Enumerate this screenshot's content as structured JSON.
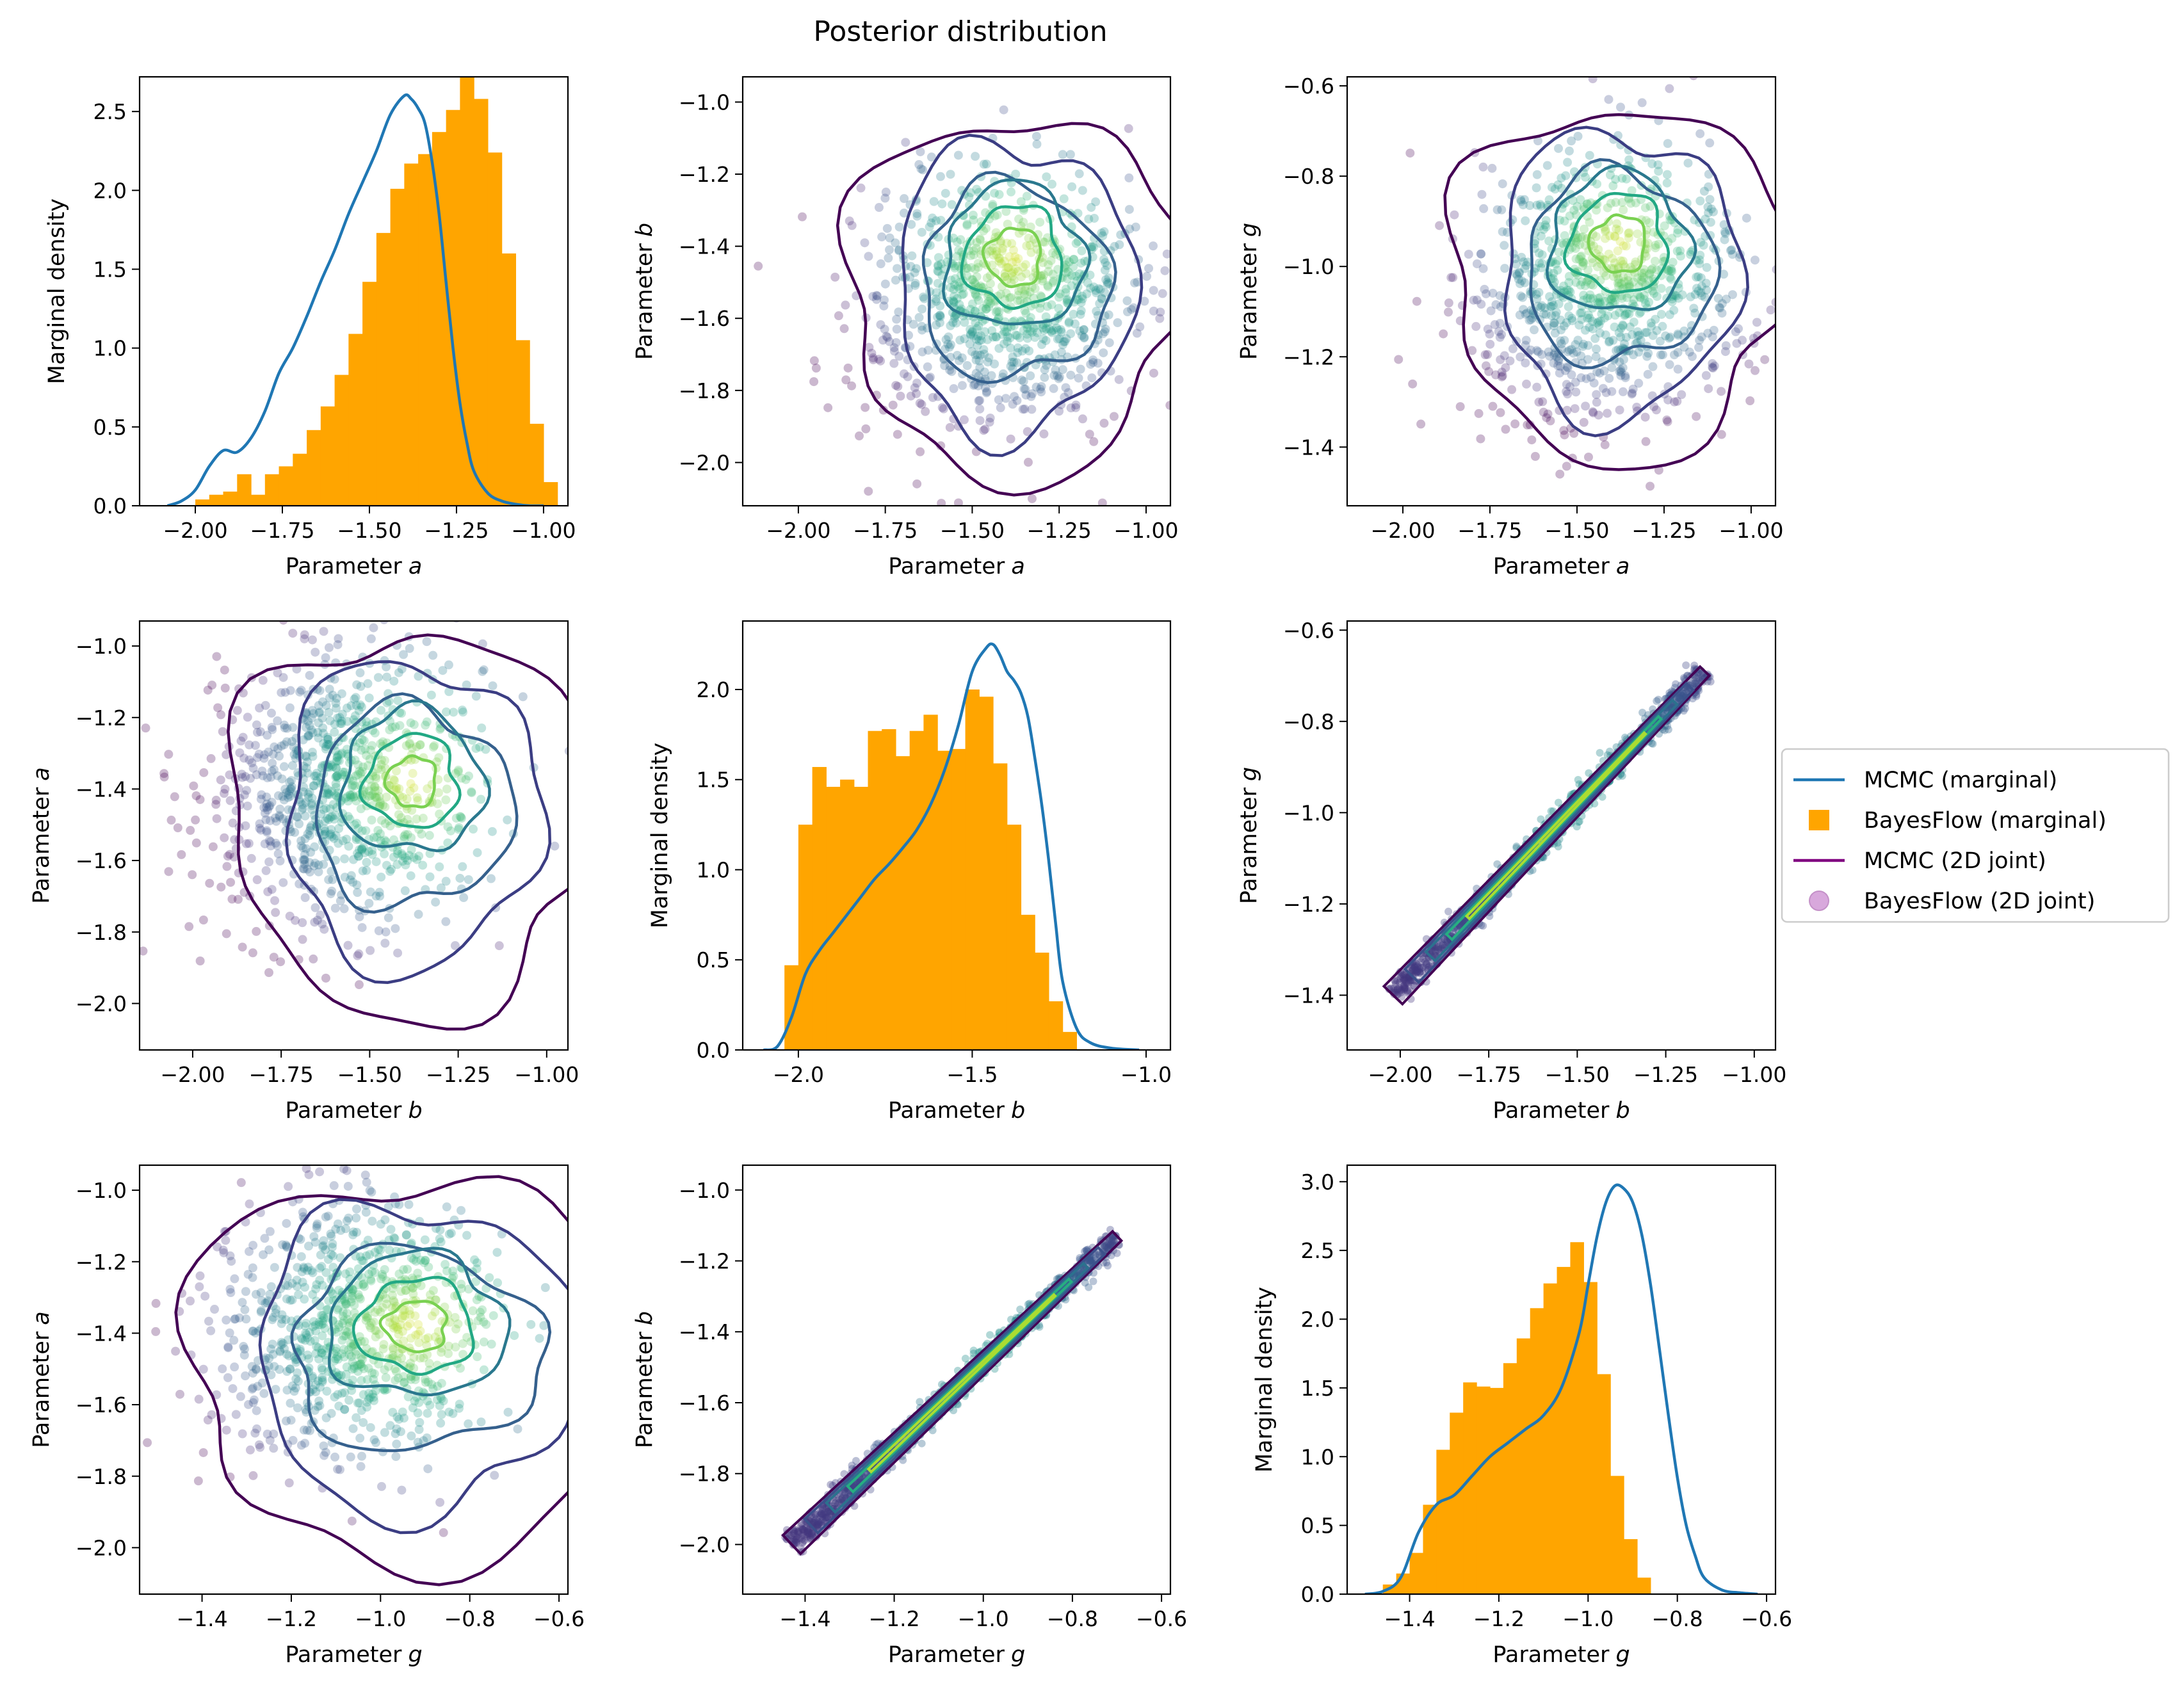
{
  "figure": {
    "title": "Posterior distribution",
    "colors": {
      "mcmc_marginal": "#1f77b4",
      "bayesflow_marginal": "#ffa500",
      "mcmc_joint": "#440154",
      "bayesflow_joint": "#b07ab8"
    },
    "legend": {
      "placement": "right",
      "entries": [
        {
          "label": "MCMC (marginal)",
          "type": "line",
          "color": "#1f77b4"
        },
        {
          "label": "BayesFlow (marginal)",
          "type": "square",
          "color": "#ffa500"
        },
        {
          "label": "MCMC (2D joint)",
          "type": "line",
          "color": "#800080"
        },
        {
          "label": "BayesFlow (2D joint)",
          "type": "circle",
          "color": "#d8a8dc"
        }
      ]
    }
  },
  "chart_data": [
    {
      "id": "a-a",
      "type": "histogram+line",
      "xlabel": "Parameter",
      "xvar": "a",
      "ylabel": "Marginal density",
      "xlim": [
        -2.16,
        -0.93
      ],
      "ylim": [
        0,
        2.72
      ],
      "xticks": [
        "−2.00",
        "−1.75",
        "−1.50",
        "−1.25",
        "−1.00"
      ],
      "xtick_values": [
        -2.0,
        -1.75,
        -1.5,
        -1.25,
        -1.0
      ],
      "yticks": [
        "0.0",
        "0.5",
        "1.0",
        "1.5",
        "2.0",
        "2.5"
      ],
      "ytick_values": [
        0,
        0.5,
        1.0,
        1.5,
        2.0,
        2.5
      ],
      "hist": {
        "x_start": -2.0,
        "bin_width": 0.04,
        "values": [
          0.04,
          0.07,
          0.09,
          0.2,
          0.07,
          0.2,
          0.25,
          0.33,
          0.48,
          0.63,
          0.83,
          1.09,
          1.42,
          1.73,
          2.01,
          2.17,
          2.23,
          2.37,
          2.51,
          2.73,
          2.58,
          2.24,
          1.6,
          1.05,
          0.52,
          0.15
        ]
      },
      "line": {
        "x": [
          -2.08,
          -2.04,
          -2.0,
          -1.96,
          -1.92,
          -1.88,
          -1.84,
          -1.8,
          -1.76,
          -1.72,
          -1.68,
          -1.64,
          -1.6,
          -1.56,
          -1.52,
          -1.48,
          -1.44,
          -1.4,
          -1.38,
          -1.36,
          -1.34,
          -1.32,
          -1.3,
          -1.28,
          -1.26,
          -1.24,
          -1.22,
          -1.2,
          -1.16,
          -1.12,
          -1.08,
          -1.04,
          -1.0
        ],
        "y": [
          0.0,
          0.03,
          0.1,
          0.25,
          0.35,
          0.34,
          0.43,
          0.6,
          0.84,
          1.0,
          1.2,
          1.42,
          1.62,
          1.85,
          2.05,
          2.25,
          2.48,
          2.6,
          2.58,
          2.52,
          2.42,
          2.18,
          1.85,
          1.42,
          1.0,
          0.65,
          0.4,
          0.22,
          0.08,
          0.03,
          0.01,
          0.0,
          0.0
        ]
      }
    },
    {
      "id": "a-b",
      "type": "scatter+contour",
      "xlabel": "Parameter",
      "xvar": "a",
      "ylabel": "Parameter",
      "yvar": "b",
      "xlim": [
        -2.16,
        -0.93
      ],
      "ylim": [
        -2.12,
        -0.93
      ],
      "xticks": [
        "−2.00",
        "−1.75",
        "−1.50",
        "−1.25",
        "−1.00"
      ],
      "xtick_values": [
        -2.0,
        -1.75,
        -1.5,
        -1.25,
        -1.0
      ],
      "yticks": [
        "−2.0",
        "−1.8",
        "−1.6",
        "−1.4",
        "−1.2",
        "−1.0"
      ],
      "ytick_values": [
        -2.0,
        -1.8,
        -1.6,
        -1.4,
        -1.2,
        -1.0
      ],
      "scatter": {
        "mean": [
          -1.42,
          -1.55
        ],
        "sd": [
          0.2,
          0.18
        ],
        "rho": 0.05,
        "n": 900
      },
      "contours": {
        "center": [
          -1.38,
          -1.43
        ],
        "radii": [
          0.42,
          0.34,
          0.27,
          0.2,
          0.14,
          0.08
        ],
        "ratio": 1.0
      }
    },
    {
      "id": "a-g",
      "type": "scatter+contour",
      "xlabel": "Parameter",
      "xvar": "a",
      "ylabel": "Parameter",
      "yvar": "g",
      "xlim": [
        -2.16,
        -0.93
      ],
      "ylim": [
        -1.53,
        -0.58
      ],
      "xticks": [
        "−2.00",
        "−1.75",
        "−1.50",
        "−1.25",
        "−1.00"
      ],
      "xtick_values": [
        -2.0,
        -1.75,
        -1.5,
        -1.25,
        -1.0
      ],
      "yticks": [
        "−1.4",
        "−1.2",
        "−1.0",
        "−0.8",
        "−0.6"
      ],
      "ytick_values": [
        -1.4,
        -1.2,
        -1.0,
        -0.8,
        -0.6
      ],
      "scatter": {
        "mean": [
          -1.42,
          -1.05
        ],
        "sd": [
          0.2,
          0.14
        ],
        "rho": 0.05,
        "n": 900
      },
      "contours": {
        "center": [
          -1.38,
          -0.95
        ],
        "radii": [
          0.42,
          0.34,
          0.27,
          0.2,
          0.14,
          0.08
        ],
        "ratio": 0.78
      }
    },
    {
      "id": "b-a",
      "type": "scatter+contour",
      "xlabel": "Parameter",
      "xvar": "b",
      "ylabel": "Parameter",
      "yvar": "a",
      "xlim": [
        -2.15,
        -0.94
      ],
      "ylim": [
        -2.13,
        -0.93
      ],
      "xticks": [
        "−2.00",
        "−1.75",
        "−1.50",
        "−1.25",
        "−1.00"
      ],
      "xtick_values": [
        -2.0,
        -1.75,
        -1.5,
        -1.25,
        -1.0
      ],
      "yticks": [
        "−2.0",
        "−1.8",
        "−1.6",
        "−1.4",
        "−1.2",
        "−1.0"
      ],
      "ytick_values": [
        -2.0,
        -1.8,
        -1.6,
        -1.4,
        -1.2,
        -1.0
      ],
      "scatter": {
        "mean": [
          -1.58,
          -1.4
        ],
        "sd": [
          0.2,
          0.19
        ],
        "rho": 0.05,
        "n": 900
      },
      "contours": {
        "center": [
          -1.38,
          -1.38
        ],
        "radii": [
          0.45,
          0.36,
          0.28,
          0.2,
          0.13,
          0.07
        ],
        "ratio": 1.0
      }
    },
    {
      "id": "b-b",
      "type": "histogram+line",
      "xlabel": "Parameter",
      "xvar": "b",
      "ylabel": "Marginal density",
      "xlim": [
        -2.16,
        -0.93
      ],
      "ylim": [
        0,
        2.38
      ],
      "xticks": [
        "−2.0",
        "−1.5",
        "−1.0"
      ],
      "xtick_values": [
        -2.0,
        -1.5,
        -1.0
      ],
      "yticks": [
        "0.0",
        "0.5",
        "1.0",
        "1.5",
        "2.0"
      ],
      "ytick_values": [
        0,
        0.5,
        1.0,
        1.5,
        2.0
      ],
      "hist": {
        "x_start": -2.04,
        "bin_width": 0.04,
        "values": [
          0.47,
          1.25,
          1.57,
          1.46,
          1.5,
          1.46,
          1.77,
          1.78,
          1.63,
          1.77,
          1.86,
          1.66,
          1.67,
          2.0,
          1.96,
          1.59,
          1.25,
          0.75,
          0.54,
          0.27,
          0.1
        ]
      },
      "line": {
        "x": [
          -2.1,
          -2.06,
          -2.02,
          -1.98,
          -1.94,
          -1.9,
          -1.86,
          -1.82,
          -1.78,
          -1.74,
          -1.7,
          -1.66,
          -1.62,
          -1.58,
          -1.54,
          -1.5,
          -1.46,
          -1.44,
          -1.42,
          -1.4,
          -1.38,
          -1.36,
          -1.34,
          -1.32,
          -1.3,
          -1.28,
          -1.26,
          -1.24,
          -1.2,
          -1.16,
          -1.1,
          -1.02
        ],
        "y": [
          0.0,
          0.02,
          0.18,
          0.42,
          0.55,
          0.65,
          0.75,
          0.85,
          0.95,
          1.03,
          1.12,
          1.22,
          1.36,
          1.55,
          1.8,
          2.1,
          2.23,
          2.25,
          2.19,
          2.1,
          2.05,
          1.98,
          1.85,
          1.62,
          1.36,
          1.05,
          0.7,
          0.38,
          0.12,
          0.04,
          0.01,
          0.0
        ]
      }
    },
    {
      "id": "b-g",
      "type": "scatter+diagonal",
      "xlabel": "Parameter",
      "xvar": "b",
      "ylabel": "Parameter",
      "yvar": "g",
      "xlim": [
        -2.15,
        -0.94
      ],
      "ylim": [
        -1.52,
        -0.58
      ],
      "xticks": [
        "−2.00",
        "−1.75",
        "−1.50",
        "−1.25",
        "−1.00"
      ],
      "xtick_values": [
        -2.0,
        -1.75,
        -1.5,
        -1.25,
        -1.0
      ],
      "yticks": [
        "−1.4",
        "−1.2",
        "−1.0",
        "−0.8",
        "−0.6"
      ],
      "ytick_values": [
        -1.4,
        -1.2,
        -1.0,
        -0.8,
        -0.6
      ],
      "band": {
        "start": [
          -2.02,
          -1.4
        ],
        "end": [
          -1.14,
          -0.69
        ]
      }
    },
    {
      "id": "g-a",
      "type": "scatter+contour",
      "xlabel": "Parameter",
      "xvar": "g",
      "ylabel": "Parameter",
      "yvar": "a",
      "xlim": [
        -1.54,
        -0.58
      ],
      "ylim": [
        -2.13,
        -0.93
      ],
      "xticks": [
        "−1.4",
        "−1.2",
        "−1.0",
        "−0.8",
        "−0.6"
      ],
      "xtick_values": [
        -1.4,
        -1.2,
        -1.0,
        -0.8,
        -0.6
      ],
      "yticks": [
        "−2.0",
        "−1.8",
        "−1.6",
        "−1.4",
        "−1.2",
        "−1.0"
      ],
      "ytick_values": [
        -2.0,
        -1.8,
        -1.6,
        -1.4,
        -1.2,
        -1.0
      ],
      "scatter": {
        "mean": [
          -1.07,
          -1.4
        ],
        "sd": [
          0.16,
          0.19
        ],
        "rho": 0.05,
        "n": 900
      },
      "contours": {
        "center": [
          -0.92,
          -1.38
        ],
        "radii": [
          0.45,
          0.36,
          0.28,
          0.2,
          0.13,
          0.07
        ],
        "ratio": 1.0
      }
    },
    {
      "id": "g-b",
      "type": "scatter+diagonal",
      "xlabel": "Parameter",
      "xvar": "g",
      "ylabel": "Parameter",
      "yvar": "b",
      "xlim": [
        -1.54,
        -0.58
      ],
      "ylim": [
        -2.14,
        -0.93
      ],
      "xticks": [
        "−1.4",
        "−1.2",
        "−1.0",
        "−0.8",
        "−0.6"
      ],
      "xtick_values": [
        -1.4,
        -1.2,
        -1.0,
        -0.8,
        -0.6
      ],
      "yticks": [
        "−2.0",
        "−1.8",
        "−1.6",
        "−1.4",
        "−1.2",
        "−1.0"
      ],
      "ytick_values": [
        -2.0,
        -1.8,
        -1.6,
        -1.4,
        -1.2,
        -1.0
      ],
      "band": {
        "start": [
          -1.43,
          -2.0
        ],
        "end": [
          -0.7,
          -1.13
        ]
      }
    },
    {
      "id": "g-g",
      "type": "histogram+line",
      "xlabel": "Parameter",
      "xvar": "g",
      "ylabel": "Marginal density",
      "xlim": [
        -1.54,
        -0.58
      ],
      "ylim": [
        0,
        3.12
      ],
      "xticks": [
        "−1.4",
        "−1.2",
        "−1.0",
        "−0.8",
        "−0.6"
      ],
      "xtick_values": [
        -1.4,
        -1.2,
        -1.0,
        -0.8,
        -0.6
      ],
      "yticks": [
        "0.0",
        "0.5",
        "1.0",
        "1.5",
        "2.0",
        "2.5",
        "3.0"
      ],
      "ytick_values": [
        0,
        0.5,
        1.0,
        1.5,
        2.0,
        2.5,
        3.0
      ],
      "hist": {
        "x_start": -1.46,
        "bin_width": 0.03,
        "values": [
          0.07,
          0.15,
          0.3,
          0.65,
          1.05,
          1.32,
          1.54,
          1.51,
          1.5,
          1.68,
          1.86,
          2.08,
          2.26,
          2.38,
          2.56,
          2.27,
          1.6,
          0.86,
          0.4,
          0.12
        ]
      },
      "line": {
        "x": [
          -1.5,
          -1.46,
          -1.42,
          -1.38,
          -1.34,
          -1.3,
          -1.26,
          -1.22,
          -1.18,
          -1.14,
          -1.1,
          -1.06,
          -1.02,
          -1.0,
          -0.98,
          -0.96,
          -0.94,
          -0.92,
          -0.9,
          -0.88,
          -0.86,
          -0.84,
          -0.82,
          -0.8,
          -0.78,
          -0.76,
          -0.74,
          -0.7,
          -0.66,
          -0.62
        ],
        "y": [
          0.0,
          0.02,
          0.12,
          0.45,
          0.65,
          0.72,
          0.86,
          1.0,
          1.1,
          1.2,
          1.3,
          1.5,
          1.9,
          2.25,
          2.6,
          2.85,
          2.97,
          2.95,
          2.85,
          2.62,
          2.25,
          1.78,
          1.3,
          0.85,
          0.5,
          0.28,
          0.12,
          0.03,
          0.01,
          0.0
        ]
      }
    }
  ]
}
